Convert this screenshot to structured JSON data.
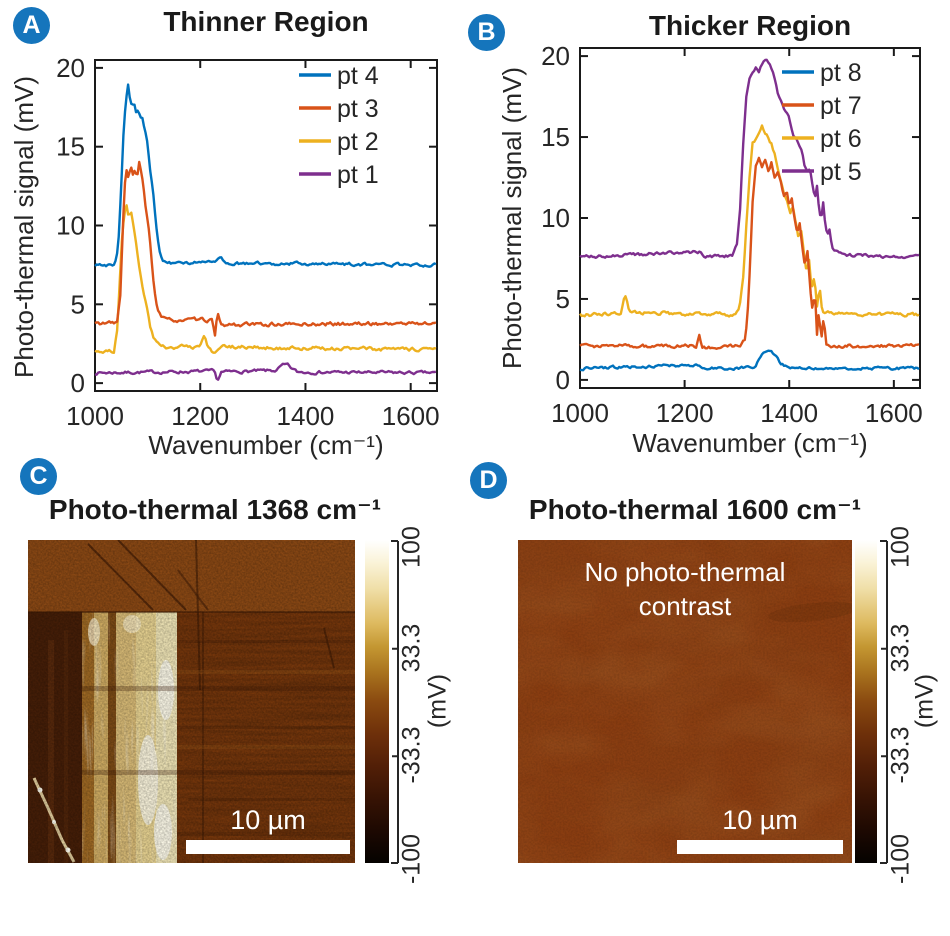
{
  "badge_color": "#1575BC",
  "panels": {
    "A": {
      "badge": "A"
    },
    "B": {
      "badge": "B"
    },
    "C": {
      "badge": "C",
      "title": "Photo-thermal 1368 cm⁻¹",
      "scalebar_label": "10 µm"
    },
    "D": {
      "badge": "D",
      "title": "Photo-thermal 1600 cm⁻¹",
      "scalebar_label": "10 µm",
      "overlay_line1": "No photo-thermal",
      "overlay_line2": "contrast"
    }
  },
  "colorbar": {
    "tick_labels": [
      "100",
      "33.3",
      "-33.3",
      "-100"
    ],
    "unit_label": "(mV)"
  },
  "chart_data": [
    {
      "id": "A",
      "type": "line",
      "title": "Thinner Region",
      "xlabel": "Wavenumber (cm⁻¹)",
      "ylabel": "Photo-thermal signal (mV)",
      "xlim": [
        1000,
        1650
      ],
      "ylim": [
        -0.5,
        20.5
      ],
      "xticks": [
        1000,
        1200,
        1400,
        1600
      ],
      "yticks": [
        0,
        5,
        10,
        15,
        20
      ],
      "grid": false,
      "legend_position": "top-right",
      "series": [
        {
          "name": "pt 4",
          "color": "#0072BD",
          "noise": 0.1,
          "anchors": [
            [
              1000,
              7.5
            ],
            [
              1038,
              7.5
            ],
            [
              1044,
              8.6
            ],
            [
              1050,
              12.5
            ],
            [
              1055,
              16.6
            ],
            [
              1060,
              18.3
            ],
            [
              1063,
              18.9
            ],
            [
              1066,
              18.1
            ],
            [
              1070,
              17.6
            ],
            [
              1074,
              17.8
            ],
            [
              1078,
              17.2
            ],
            [
              1082,
              17.4
            ],
            [
              1086,
              16.9
            ],
            [
              1090,
              16.8
            ],
            [
              1094,
              16.2
            ],
            [
              1098,
              15.6
            ],
            [
              1102,
              14.4
            ],
            [
              1106,
              13.2
            ],
            [
              1110,
              12.2
            ],
            [
              1114,
              10.8
            ],
            [
              1118,
              9.4
            ],
            [
              1123,
              8.3
            ],
            [
              1128,
              7.8
            ],
            [
              1135,
              7.6
            ],
            [
              1230,
              7.7
            ],
            [
              1238,
              8.0
            ],
            [
              1246,
              7.6
            ],
            [
              1650,
              7.5
            ]
          ]
        },
        {
          "name": "pt 3",
          "color": "#D95319",
          "noise": 0.12,
          "anchors": [
            [
              1000,
              3.8
            ],
            [
              1042,
              3.8
            ],
            [
              1048,
              5.5
            ],
            [
              1052,
              9.0
            ],
            [
              1056,
              12.6
            ],
            [
              1060,
              13.5
            ],
            [
              1064,
              13.0
            ],
            [
              1068,
              13.8
            ],
            [
              1072,
              13.2
            ],
            [
              1076,
              13.5
            ],
            [
              1080,
              12.9
            ],
            [
              1084,
              14.0
            ],
            [
              1088,
              13.3
            ],
            [
              1092,
              12.4
            ],
            [
              1096,
              11.2
            ],
            [
              1100,
              10.2
            ],
            [
              1104,
              9.2
            ],
            [
              1108,
              7.6
            ],
            [
              1112,
              6.2
            ],
            [
              1116,
              5.2
            ],
            [
              1121,
              4.5
            ],
            [
              1127,
              4.2
            ],
            [
              1135,
              4.0
            ],
            [
              1222,
              4.0
            ],
            [
              1228,
              3.0
            ],
            [
              1233,
              4.4
            ],
            [
              1238,
              3.7
            ],
            [
              1650,
              3.8
            ]
          ]
        },
        {
          "name": "pt 2",
          "color": "#EDB120",
          "noise": 0.12,
          "anchors": [
            [
              1000,
              2.0
            ],
            [
              1036,
              2.0
            ],
            [
              1042,
              3.4
            ],
            [
              1047,
              6.5
            ],
            [
              1052,
              9.6
            ],
            [
              1056,
              10.9
            ],
            [
              1060,
              11.4
            ],
            [
              1064,
              10.6
            ],
            [
              1068,
              11.0
            ],
            [
              1072,
              10.1
            ],
            [
              1076,
              9.2
            ],
            [
              1080,
              8.3
            ],
            [
              1085,
              7.2
            ],
            [
              1090,
              6.2
            ],
            [
              1095,
              5.4
            ],
            [
              1100,
              4.7
            ],
            [
              1105,
              3.7
            ],
            [
              1111,
              2.9
            ],
            [
              1118,
              2.5
            ],
            [
              1126,
              2.3
            ],
            [
              1200,
              2.3
            ],
            [
              1208,
              3.0
            ],
            [
              1214,
              2.2
            ],
            [
              1226,
              1.9
            ],
            [
              1236,
              2.3
            ],
            [
              1650,
              2.1
            ]
          ]
        },
        {
          "name": "pt 1",
          "color": "#7E2F8E",
          "noise": 0.1,
          "anchors": [
            [
              1000,
              0.65
            ],
            [
              1226,
              0.75
            ],
            [
              1233,
              0.15
            ],
            [
              1240,
              0.7
            ],
            [
              1345,
              0.8
            ],
            [
              1355,
              1.1
            ],
            [
              1365,
              1.15
            ],
            [
              1375,
              0.9
            ],
            [
              1385,
              0.7
            ],
            [
              1650,
              0.65
            ]
          ]
        }
      ]
    },
    {
      "id": "B",
      "type": "line",
      "title": "Thicker Region",
      "xlabel": "Wavenumber (cm⁻¹)",
      "ylabel": "Photo-thermal signal (mV)",
      "xlim": [
        1000,
        1650
      ],
      "ylim": [
        -0.5,
        20.5
      ],
      "xticks": [
        1000,
        1200,
        1400,
        1600
      ],
      "yticks": [
        0,
        5,
        10,
        15,
        20
      ],
      "grid": false,
      "legend_position": "top-right",
      "series": [
        {
          "name": "pt 8",
          "color": "#0072BD",
          "noise": 0.09,
          "anchors": [
            [
              1000,
              0.7
            ],
            [
              1225,
              0.95
            ],
            [
              1235,
              0.7
            ],
            [
              1335,
              0.75
            ],
            [
              1345,
              1.4
            ],
            [
              1352,
              1.7
            ],
            [
              1362,
              1.75
            ],
            [
              1372,
              1.6
            ],
            [
              1382,
              1.1
            ],
            [
              1392,
              0.85
            ],
            [
              1405,
              0.75
            ],
            [
              1650,
              0.7
            ]
          ]
        },
        {
          "name": "pt 7",
          "color": "#D95319",
          "noise": 0.11,
          "anchors": [
            [
              1000,
              2.1
            ],
            [
              1222,
              2.1
            ],
            [
              1228,
              2.8
            ],
            [
              1234,
              2.0
            ],
            [
              1305,
              2.1
            ],
            [
              1315,
              2.5
            ],
            [
              1320,
              3.8
            ],
            [
              1325,
              7.0
            ],
            [
              1330,
              11.0
            ],
            [
              1336,
              13.2
            ],
            [
              1342,
              13.7
            ],
            [
              1348,
              13.1
            ],
            [
              1354,
              13.5
            ],
            [
              1360,
              12.9
            ],
            [
              1366,
              13.4
            ],
            [
              1372,
              12.6
            ],
            [
              1378,
              12.9
            ],
            [
              1384,
              12.2
            ],
            [
              1390,
              11.3
            ],
            [
              1395,
              11.7
            ],
            [
              1400,
              10.7
            ],
            [
              1405,
              11.1
            ],
            [
              1410,
              10.0
            ],
            [
              1415,
              9.1
            ],
            [
              1420,
              9.7
            ],
            [
              1425,
              8.3
            ],
            [
              1430,
              7.1
            ],
            [
              1435,
              8.0
            ],
            [
              1440,
              5.7
            ],
            [
              1445,
              4.3
            ],
            [
              1449,
              5.5
            ],
            [
              1453,
              2.7
            ],
            [
              1457,
              4.4
            ],
            [
              1461,
              2.4
            ],
            [
              1466,
              3.9
            ],
            [
              1471,
              2.2
            ],
            [
              1478,
              2.1
            ],
            [
              1650,
              2.1
            ]
          ]
        },
        {
          "name": "pt 6",
          "color": "#EDB120",
          "noise": 0.12,
          "anchors": [
            [
              1000,
              4.0
            ],
            [
              1078,
              4.1
            ],
            [
              1086,
              5.3
            ],
            [
              1094,
              4.2
            ],
            [
              1295,
              4.0
            ],
            [
              1305,
              4.6
            ],
            [
              1312,
              6.5
            ],
            [
              1318,
              9.5
            ],
            [
              1324,
              12.5
            ],
            [
              1330,
              14.6
            ],
            [
              1336,
              14.9
            ],
            [
              1342,
              15.3
            ],
            [
              1348,
              15.8
            ],
            [
              1354,
              15.3
            ],
            [
              1360,
              15.0
            ],
            [
              1366,
              14.6
            ],
            [
              1372,
              14.0
            ],
            [
              1378,
              13.1
            ],
            [
              1384,
              12.4
            ],
            [
              1390,
              11.6
            ],
            [
              1396,
              11.0
            ],
            [
              1402,
              10.4
            ],
            [
              1407,
              10.8
            ],
            [
              1412,
              9.7
            ],
            [
              1418,
              8.7
            ],
            [
              1423,
              9.2
            ],
            [
              1428,
              7.9
            ],
            [
              1433,
              6.7
            ],
            [
              1438,
              7.4
            ],
            [
              1443,
              5.6
            ],
            [
              1448,
              6.4
            ],
            [
              1453,
              4.6
            ],
            [
              1458,
              5.8
            ],
            [
              1463,
              4.1
            ],
            [
              1470,
              4.2
            ],
            [
              1480,
              4.1
            ],
            [
              1650,
              4.0
            ]
          ]
        },
        {
          "name": "pt 5",
          "color": "#7E2F8E",
          "noise": 0.1,
          "anchors": [
            [
              1000,
              7.6
            ],
            [
              1230,
              7.9
            ],
            [
              1240,
              7.6
            ],
            [
              1292,
              7.7
            ],
            [
              1300,
              8.4
            ],
            [
              1306,
              10.5
            ],
            [
              1312,
              14.5
            ],
            [
              1318,
              17.5
            ],
            [
              1324,
              18.6
            ],
            [
              1330,
              18.9
            ],
            [
              1336,
              19.2
            ],
            [
              1342,
              19.0
            ],
            [
              1348,
              19.5
            ],
            [
              1355,
              19.8
            ],
            [
              1362,
              19.6
            ],
            [
              1368,
              19.2
            ],
            [
              1374,
              18.3
            ],
            [
              1380,
              17.5
            ],
            [
              1386,
              17.0
            ],
            [
              1392,
              16.6
            ],
            [
              1398,
              16.4
            ],
            [
              1404,
              15.6
            ],
            [
              1409,
              15.0
            ],
            [
              1414,
              14.9
            ],
            [
              1419,
              14.6
            ],
            [
              1424,
              14.2
            ],
            [
              1429,
              13.3
            ],
            [
              1434,
              12.9
            ],
            [
              1439,
              13.1
            ],
            [
              1444,
              12.2
            ],
            [
              1449,
              11.3
            ],
            [
              1453,
              12.0
            ],
            [
              1457,
              10.6
            ],
            [
              1461,
              9.9
            ],
            [
              1465,
              10.9
            ],
            [
              1469,
              9.4
            ],
            [
              1473,
              8.8
            ],
            [
              1477,
              9.3
            ],
            [
              1481,
              8.4
            ],
            [
              1486,
              8.0
            ],
            [
              1495,
              7.8
            ],
            [
              1510,
              7.7
            ],
            [
              1650,
              7.6
            ]
          ]
        }
      ]
    }
  ]
}
